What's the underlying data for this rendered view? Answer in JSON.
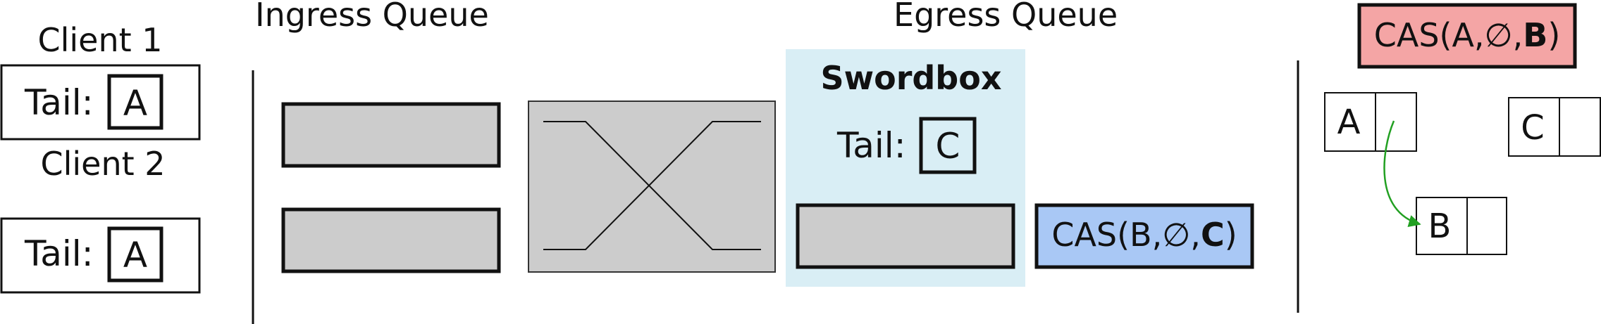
{
  "headings": {
    "ingress": "Ingress Queue",
    "egress": "Egress Queue"
  },
  "clients": [
    {
      "title": "Client 1",
      "tail_label": "Tail:",
      "tail_value": "A"
    },
    {
      "title": "Client 2",
      "tail_label": "Tail:",
      "tail_value": "A"
    }
  ],
  "swordbox": {
    "title": "Swordbox",
    "tail_label": "Tail:",
    "tail_value": "C"
  },
  "messages": {
    "egress_cas": {
      "prefix": "CAS(B,∅,",
      "bold": "C",
      "suffix": ")"
    },
    "top_cas": {
      "prefix": "CAS(A,∅,",
      "bold": "B",
      "suffix": ")"
    }
  },
  "nodes": {
    "a": "A",
    "b": "B",
    "c": "C"
  },
  "colors": {
    "queue_fill": "#cccccc",
    "swordbox_bg": "#d9eef5",
    "egress_cas_fill": "#a9c8f5",
    "top_cas_fill": "#f4a5a5",
    "pointer_arrow": "#22a022"
  }
}
